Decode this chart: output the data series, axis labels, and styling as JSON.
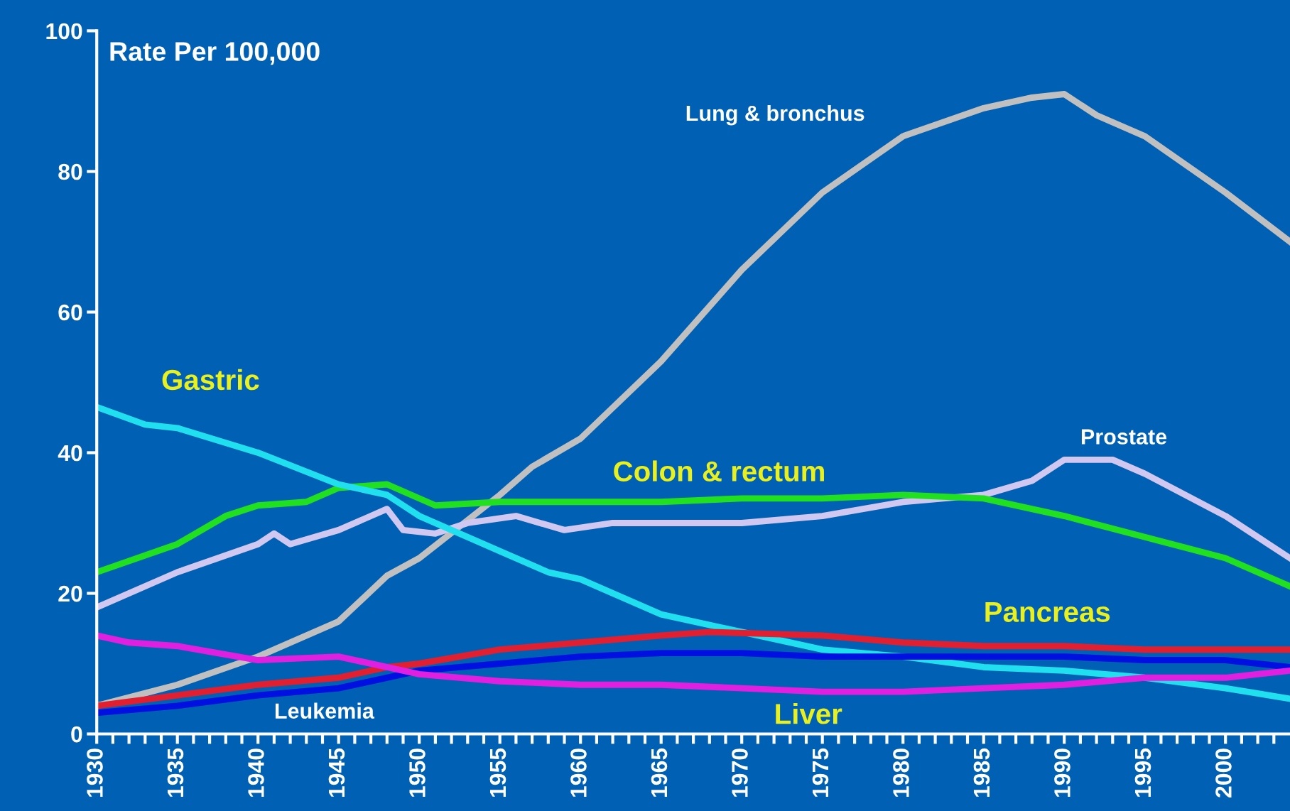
{
  "chart_data": {
    "type": "line",
    "ylabel": "Rate Per 100,000",
    "ylim": [
      0,
      100
    ],
    "yticks": [
      0,
      20,
      40,
      60,
      80,
      100
    ],
    "xlim": [
      1930,
      2004
    ],
    "xticks": [
      1930,
      {
        "value": 1931,
        "label": null
      },
      {
        "value": 1932,
        "label": null
      },
      {
        "value": 1933,
        "label": null
      },
      {
        "value": 1934,
        "label": null
      },
      1935,
      {
        "value": 1936,
        "label": null
      },
      {
        "value": 1937,
        "label": null
      },
      {
        "value": 1938,
        "label": null
      },
      {
        "value": 1939,
        "label": null
      },
      1940,
      {
        "value": 1941,
        "label": null
      },
      {
        "value": 1942,
        "label": null
      },
      {
        "value": 1943,
        "label": null
      },
      {
        "value": 1944,
        "label": null
      },
      1945,
      {
        "value": 1946,
        "label": null
      },
      {
        "value": 1947,
        "label": null
      },
      {
        "value": 1948,
        "label": null
      },
      {
        "value": 1949,
        "label": null
      },
      1950,
      {
        "value": 1951,
        "label": null
      },
      {
        "value": 1952,
        "label": null
      },
      {
        "value": 1953,
        "label": null
      },
      {
        "value": 1954,
        "label": null
      },
      1955,
      {
        "value": 1956,
        "label": null
      },
      {
        "value": 1957,
        "label": null
      },
      {
        "value": 1958,
        "label": null
      },
      {
        "value": 1959,
        "label": null
      },
      1960,
      {
        "value": 1961,
        "label": null
      },
      {
        "value": 1962,
        "label": null
      },
      {
        "value": 1963,
        "label": null
      },
      {
        "value": 1964,
        "label": null
      },
      1965,
      {
        "value": 1966,
        "label": null
      },
      {
        "value": 1967,
        "label": null
      },
      {
        "value": 1968,
        "label": null
      },
      {
        "value": 1969,
        "label": null
      },
      1970,
      {
        "value": 1971,
        "label": null
      },
      {
        "value": 1972,
        "label": null
      },
      {
        "value": 1973,
        "label": null
      },
      {
        "value": 1974,
        "label": null
      },
      1975,
      {
        "value": 1976,
        "label": null
      },
      {
        "value": 1977,
        "label": null
      },
      {
        "value": 1978,
        "label": null
      },
      {
        "value": 1979,
        "label": null
      },
      1980,
      {
        "value": 1981,
        "label": null
      },
      {
        "value": 1982,
        "label": null
      },
      {
        "value": 1983,
        "label": null
      },
      {
        "value": 1984,
        "label": null
      },
      1985,
      {
        "value": 1986,
        "label": null
      },
      {
        "value": 1987,
        "label": null
      },
      {
        "value": 1988,
        "label": null
      },
      {
        "value": 1989,
        "label": null
      },
      1990,
      {
        "value": 1991,
        "label": null
      },
      {
        "value": 1992,
        "label": null
      },
      {
        "value": 1993,
        "label": null
      },
      {
        "value": 1994,
        "label": null
      },
      1995,
      {
        "value": 1996,
        "label": null
      },
      {
        "value": 1997,
        "label": null
      },
      {
        "value": 1998,
        "label": null
      },
      {
        "value": 1999,
        "label": null
      },
      2000,
      {
        "value": 2001,
        "label": null
      },
      {
        "value": 2002,
        "label": null
      },
      {
        "value": 2003,
        "label": null
      }
    ],
    "grid": false,
    "legend": false,
    "marker": "none",
    "line_style": "solid",
    "series": [
      {
        "name": "Lung & bronchus",
        "color": "#c0c0c0",
        "x": [
          1930,
          1935,
          1940,
          1945,
          1948,
          1950,
          1955,
          1957,
          1960,
          1965,
          1970,
          1975,
          1980,
          1985,
          1988,
          1990,
          1992,
          1995,
          2000,
          2004
        ],
        "values": [
          4,
          7,
          11,
          16,
          22.5,
          25,
          34,
          38,
          42,
          53,
          66,
          77,
          85,
          89,
          90.5,
          91,
          88,
          85,
          77,
          70
        ]
      },
      {
        "name": "Prostate",
        "color": "#d0c8f0",
        "x": [
          1930,
          1935,
          1940,
          1941,
          1942,
          1945,
          1948,
          1949,
          1951,
          1953,
          1956,
          1959,
          1962,
          1970,
          1975,
          1980,
          1985,
          1988,
          1990,
          1993,
          1995,
          2000,
          2004
        ],
        "values": [
          18,
          23,
          27,
          28.5,
          27,
          29,
          32,
          29,
          28.5,
          30,
          31,
          29,
          30,
          30,
          31,
          33,
          34,
          36,
          39,
          39,
          37,
          31,
          25
        ]
      },
      {
        "name": "Colon & rectum",
        "color": "#20e020",
        "x": [
          1930,
          1935,
          1938,
          1940,
          1943,
          1945,
          1948,
          1951,
          1955,
          1960,
          1965,
          1970,
          1975,
          1980,
          1985,
          1990,
          1995,
          2000,
          2004
        ],
        "values": [
          23,
          27,
          31,
          32.5,
          33,
          35,
          35.5,
          32.5,
          33,
          33,
          33,
          33.5,
          33.5,
          34,
          33.5,
          31,
          28,
          25,
          21
        ]
      },
      {
        "name": "Gastric",
        "color": "#20e0f0",
        "x": [
          1930,
          1933,
          1935,
          1940,
          1945,
          1948,
          1950,
          1955,
          1958,
          1960,
          1965,
          1970,
          1975,
          1980,
          1985,
          1990,
          1995,
          2000,
          2004
        ],
        "values": [
          46.5,
          44,
          43.5,
          40,
          35.5,
          34,
          31,
          26,
          23,
          22,
          17,
          14.5,
          12,
          11,
          9.5,
          9,
          8,
          6.5,
          5
        ]
      },
      {
        "name": "Pancreas",
        "color": "#e02030",
        "x": [
          1930,
          1935,
          1940,
          1945,
          1948,
          1950,
          1955,
          1960,
          1965,
          1968,
          1975,
          1980,
          1985,
          1990,
          1995,
          2000,
          2004
        ],
        "values": [
          4,
          5.5,
          7,
          8,
          9.5,
          10,
          12,
          13,
          14,
          14.5,
          14,
          13,
          12.5,
          12.5,
          12,
          12,
          12
        ]
      },
      {
        "name": "Leukemia",
        "color": "#0010e0",
        "x": [
          1930,
          1935,
          1940,
          1945,
          1950,
          1955,
          1960,
          1965,
          1970,
          1975,
          1980,
          1985,
          1990,
          1995,
          2000,
          2004
        ],
        "values": [
          3,
          4,
          5.5,
          6.5,
          9,
          10,
          11,
          11.5,
          11.5,
          11,
          11,
          11,
          11,
          10.5,
          10.5,
          9.5
        ]
      },
      {
        "name": "Liver",
        "color": "#e020e0",
        "x": [
          1930,
          1932,
          1935,
          1940,
          1945,
          1948,
          1950,
          1955,
          1960,
          1965,
          1970,
          1975,
          1980,
          1985,
          1990,
          1995,
          2000,
          2004
        ],
        "values": [
          14,
          13,
          12.5,
          10.5,
          11,
          9.5,
          8.5,
          7.5,
          7,
          7,
          6.5,
          6,
          6,
          6.5,
          7,
          8,
          8,
          9
        ]
      }
    ]
  }
}
